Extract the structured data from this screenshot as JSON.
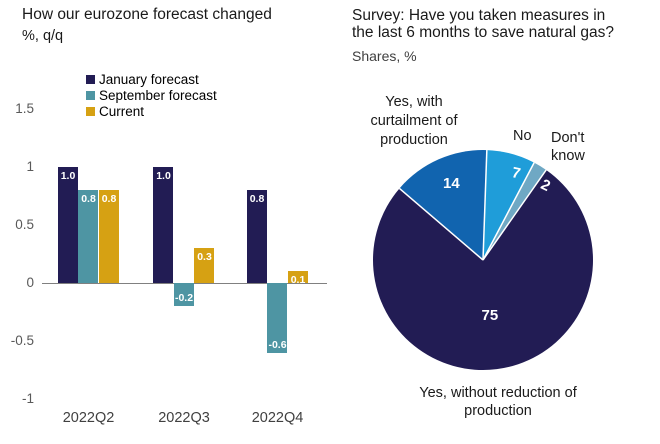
{
  "page": {
    "background": "#ffffff"
  },
  "chart_data": [
    {
      "type": "bar",
      "title": "How our eurozone forecast changed",
      "subtitle": "%, q/q",
      "categories": [
        "2022Q2",
        "2022Q3",
        "2022Q4"
      ],
      "series": [
        {
          "name": "January forecast",
          "color": "#221c54",
          "values": [
            1.0,
            1.0,
            0.8
          ],
          "labels": [
            "1.0",
            "1.0",
            "0.8"
          ]
        },
        {
          "name": "September forecast",
          "color": "#4e95a3",
          "values": [
            0.8,
            -0.2,
            -0.6
          ],
          "labels": [
            "0.8",
            "-0.2",
            "-0.6"
          ]
        },
        {
          "name": "Current",
          "color": "#d6a113",
          "values": [
            0.8,
            0.3,
            0.1
          ],
          "labels": [
            "0.8",
            "0.3",
            "0.1"
          ]
        }
      ],
      "ylim": [
        -1,
        1.5
      ],
      "yticks": [
        "1.5",
        "1",
        "0.5",
        "0",
        "-0.5",
        "-1"
      ],
      "grid": false,
      "legend_position": "top-center",
      "value_label_color": "#ffffff",
      "axis_line_color": "#808080",
      "tick_color": "#595959",
      "category_color": "#404040"
    },
    {
      "type": "pie",
      "title": "Survey: Have you taken measures in the last 6 months to save natural gas?",
      "title_lines": [
        "Survey: Have you taken measures in",
        "the last 6 months to save natural gas?"
      ],
      "subtitle": "Shares, %",
      "direction": "clockwise",
      "start_angle_deg": 2,
      "slices": [
        {
          "label": "No",
          "value": 7,
          "color": "#1f9dd9",
          "label_lines": [
            "No"
          ]
        },
        {
          "label": "Don't know",
          "value": 2,
          "color": "#6fa8c4",
          "label_lines": [
            "Don't",
            "know"
          ]
        },
        {
          "label": "Yes, without reduction of production",
          "value": 75,
          "color": "#221c54",
          "label_lines": [
            "Yes, without reduction of",
            "production"
          ]
        },
        {
          "label": "Yes, with curtailment of production",
          "value": 14,
          "color": "#1164af",
          "label_lines": [
            "Yes, with",
            "curtailment of",
            "production"
          ]
        }
      ],
      "value_label_color": "#ffffff"
    }
  ]
}
